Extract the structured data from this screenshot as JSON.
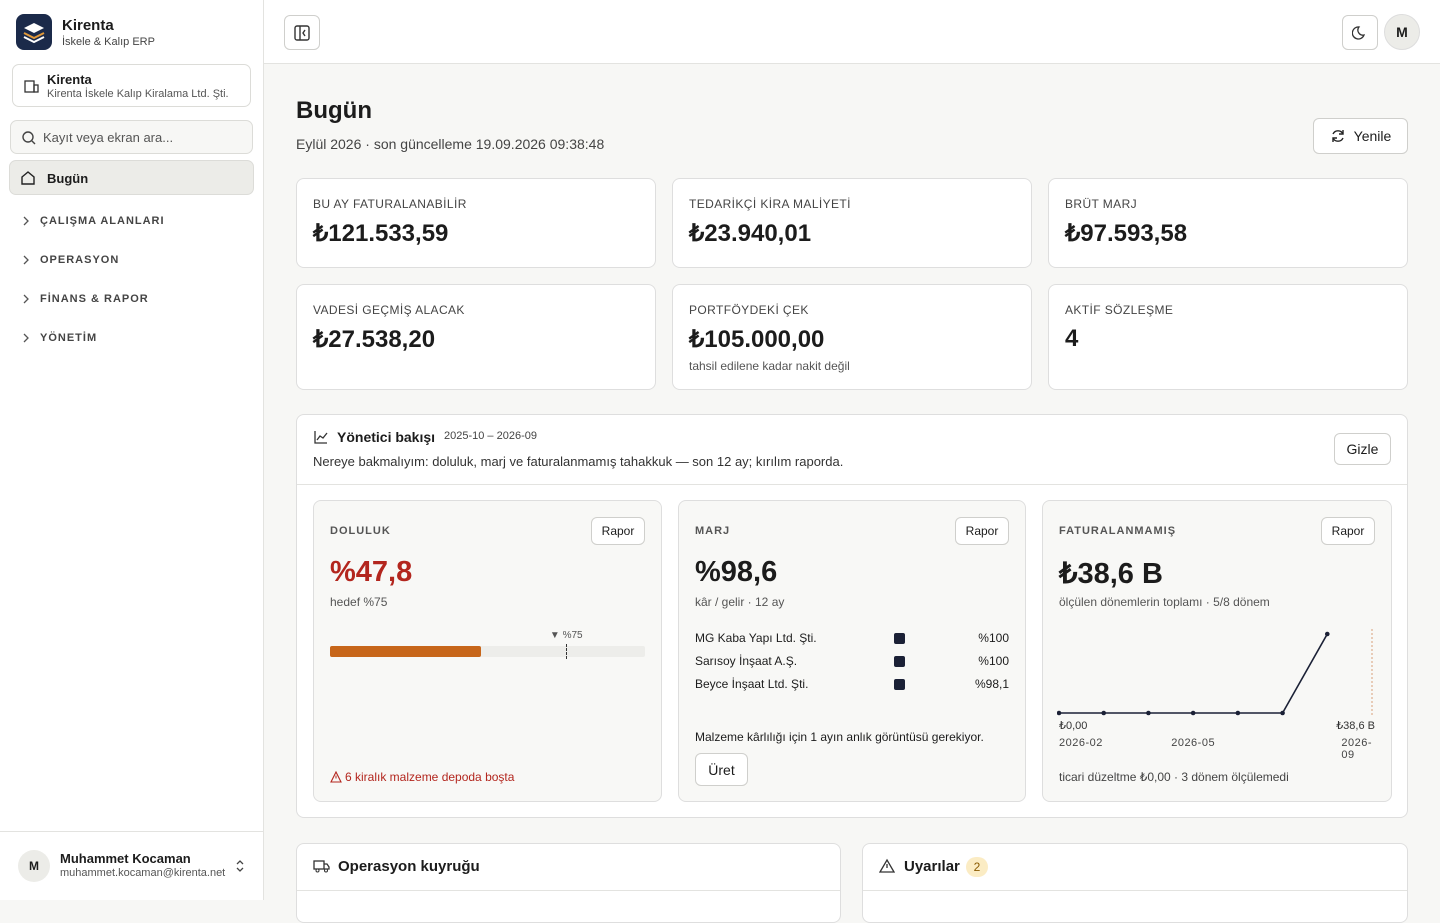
{
  "sidebar": {
    "brand": {
      "name": "Kirenta",
      "subtitle": "İskele & Kalıp ERP"
    },
    "company": {
      "name": "Kirenta",
      "full_name": "Kirenta İskele Kalıp Kiralama Ltd. Şti."
    },
    "search_placeholder": "Kayıt veya ekran ara...",
    "active_item": "Bugün",
    "groups": [
      "ÇALIŞMA ALANLARI",
      "OPERASYON",
      "FİNANS & RAPOR",
      "YÖNETİM"
    ],
    "user": {
      "initial": "M",
      "name": "Muhammet Kocaman",
      "email": "muhammet.kocaman@kirenta.net"
    }
  },
  "topbar": {
    "avatar": "M"
  },
  "page": {
    "title": "Bugün",
    "subtitle": "Eylül 2026 · son güncelleme 19.09.2026 09:38:48",
    "refresh": "Yenile"
  },
  "kpis": [
    {
      "label": "BU AY FATURALANABİLİR",
      "value": "₺121.533,59"
    },
    {
      "label": "TEDARİKÇİ KİRA MALİYETİ",
      "value": "₺23.940,01"
    },
    {
      "label": "BRÜT MARJ",
      "value": "₺97.593,58"
    },
    {
      "label": "VADESİ GEÇMİŞ ALACAK",
      "value": "₺27.538,20"
    },
    {
      "label": "PORTFÖYDEKİ ÇEK",
      "value": "₺105.000,00",
      "note": "tahsil edilene kadar nakit değil"
    },
    {
      "label": "AKTİF SÖZLEŞME",
      "value": "4"
    }
  ],
  "executive": {
    "title": "Yönetici bakışı",
    "range": "2025-10 – 2026-09",
    "description": "Nereye bakmalıyım: doluluk, marj ve faturalanmamış tahakkuk — son 12 ay; kırılım raporda.",
    "hide": "Gizle",
    "occupancy": {
      "label": "DOLULUK",
      "report": "Rapor",
      "rate": {
        "value": 47.8,
        "label": "%47,8"
      },
      "subtitle": "hedef %75",
      "target": {
        "value": 75,
        "label": "▼ %75"
      },
      "warning": "6 kiralık malzeme depoda boşta"
    },
    "margin": {
      "label": "MARJ",
      "report": "Rapor",
      "value": "%98,6",
      "subtitle": "kâr / gelir · 12 ay",
      "rows": [
        {
          "name": "MG Kaba Yapı Ltd. Şti.",
          "value": "%100"
        },
        {
          "name": "Sarısoy İnşaat A.Ş.",
          "value": "%100"
        },
        {
          "name": "Beyce İnşaat Ltd. Şti.",
          "value": "%98,1"
        }
      ],
      "note": "Malzeme kârlılığı için 1 ayın anlık görüntüsü gerekiyor.",
      "button": "Üret"
    },
    "unbilled": {
      "label": "FATURALANMAMIŞ",
      "report": "Rapor",
      "value": "₺38,6 B",
      "subtitle": "ölçülen dönemlerin toplamı · 5/8 dönem",
      "chart": {
        "type": "line",
        "categories": [
          "2026-02",
          null,
          null,
          "2026-05",
          null,
          null,
          null,
          "2026-09"
        ],
        "values": [
          0,
          0,
          0,
          0,
          0,
          0,
          38.6,
          null
        ],
        "color": "#1b2136",
        "ylim": [
          0,
          38.6
        ],
        "yticks": [
          {
            "value": 0,
            "label": "₺0,00"
          },
          {
            "value": 38.6,
            "label": "₺38,6 B"
          }
        ]
      },
      "footer": "ticari düzeltme ₺0,00 · 3 dönem ölçülemedi"
    }
  },
  "operations": {
    "title": "Operasyon kuyruğu"
  },
  "alerts": {
    "title": "Uyarılar",
    "count": "2"
  }
}
